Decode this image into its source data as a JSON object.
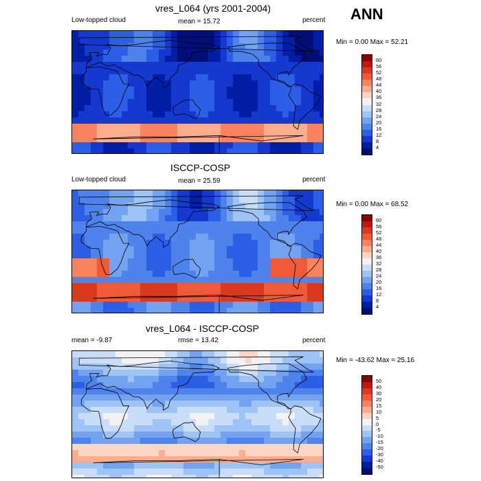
{
  "season": "ANN",
  "panels": [
    {
      "title": "vres_L064 (yrs 2001-2004)",
      "left": "Low-topped cloud",
      "center": "mean =  15.72",
      "right": "percent",
      "minmax": "Min =   0.00 Max =  52.21",
      "colorbar": [
        "60",
        "56",
        "52",
        "48",
        "44",
        "40",
        "36",
        "32",
        "28",
        "24",
        "20",
        "16",
        "12",
        "8",
        "4"
      ]
    },
    {
      "title": "ISCCP-COSP",
      "left": "Low-topped cloud",
      "center": "mean =  25.59",
      "right": "percent",
      "minmax": "Min =   0.00 Max =  68.52",
      "colorbar": [
        "60",
        "56",
        "52",
        "48",
        "44",
        "40",
        "36",
        "32",
        "28",
        "24",
        "20",
        "16",
        "12",
        "8",
        "4"
      ]
    },
    {
      "title": "vres_L064 - ISCCP-COSP",
      "left": "mean =  -9.87",
      "center": "rmse =  13.42",
      "right": "percent",
      "minmax": "Min = -43.62 Max =  25.16",
      "colorbar": [
        "50",
        "40",
        "30",
        "20",
        "15",
        "10",
        "5",
        "0",
        "-5",
        "-10",
        "-15",
        "-20",
        "-30",
        "-40",
        "-50"
      ]
    }
  ],
  "colors": {
    "palette": [
      "#8b0000",
      "#b81c10",
      "#d9391c",
      "#ee5b36",
      "#f7845e",
      "#fbad8e",
      "#fdd5c4",
      "#f2f2f2",
      "#c9ddf8",
      "#9ec3f5",
      "#73a3f0",
      "#4d83eb",
      "#2d5fe6",
      "#1539cf",
      "#001ea6",
      "#000e7a"
    ],
    "land": "#ffffff",
    "coast": "#000000"
  }
}
